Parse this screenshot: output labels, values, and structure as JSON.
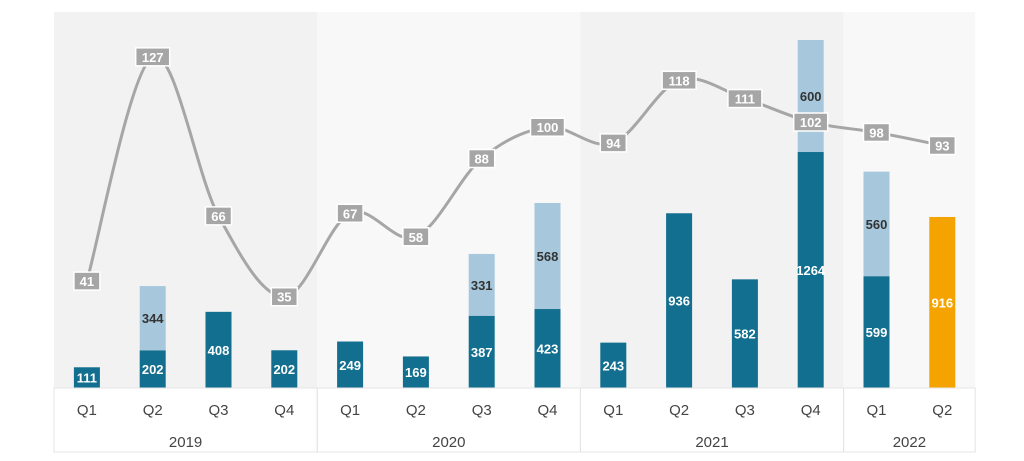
{
  "chart_data": {
    "type": "bar",
    "subtype": "stacked bar with line overlay",
    "title": "",
    "xlabel": "",
    "ylabel": "",
    "groups": [
      {
        "name": "2019",
        "categories": [
          "Q1",
          "Q2",
          "Q3",
          "Q4"
        ]
      },
      {
        "name": "2020",
        "categories": [
          "Q1",
          "Q2",
          "Q3",
          "Q4"
        ]
      },
      {
        "name": "2021",
        "categories": [
          "Q1",
          "Q2",
          "Q3",
          "Q4"
        ]
      },
      {
        "name": "2022",
        "categories": [
          "Q1",
          "Q2"
        ]
      }
    ],
    "series": [
      {
        "color": "#136f8f",
        "values": [
          111,
          202,
          408,
          202,
          249,
          169,
          387,
          423,
          243,
          936,
          582,
          1264,
          599,
          916
        ]
      },
      {
        "color": "#a7c8dc",
        "values": [
          0,
          344,
          0,
          0,
          0,
          0,
          331,
          568,
          0,
          0,
          0,
          600,
          560,
          0
        ]
      },
      {
        "type": "line",
        "color": "#a6a6a6",
        "values": [
          41,
          127,
          66,
          35,
          67,
          58,
          88,
          100,
          94,
          118,
          111,
          102,
          98,
          93
        ]
      }
    ],
    "highlight": {
      "index": 13,
      "color": "#f5a300"
    },
    "bar_ylim": [
      0,
      1864
    ],
    "line_ylim": [
      0,
      130
    ],
    "grid": false,
    "legend": "none"
  }
}
